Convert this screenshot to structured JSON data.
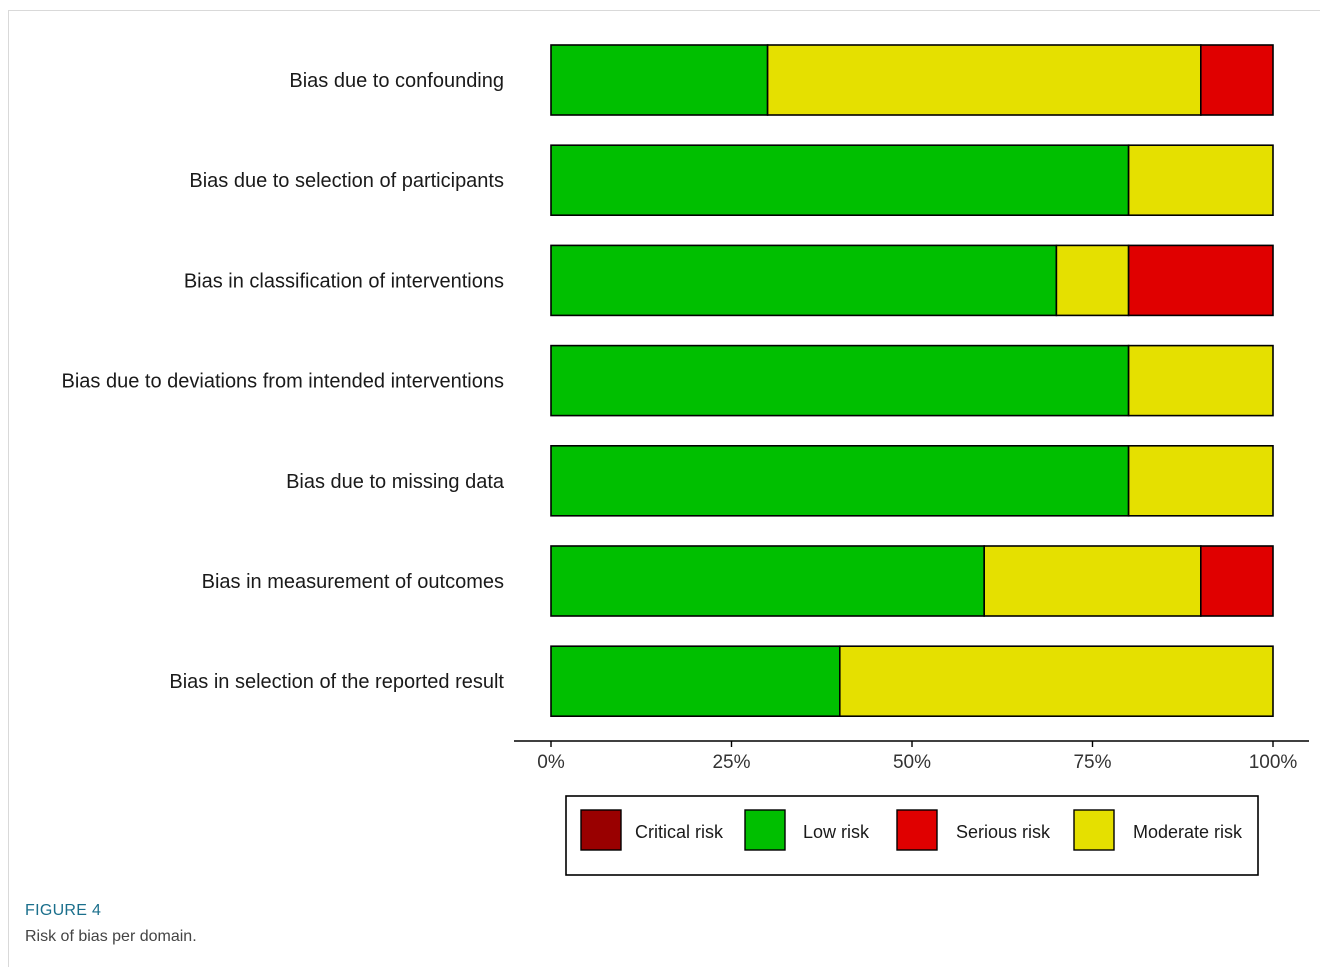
{
  "figure": {
    "label": "FIGURE 4",
    "caption": "Risk of bias per domain."
  },
  "chart_data": {
    "type": "bar",
    "orientation": "horizontal",
    "stacked": true,
    "categories": [
      "Bias due to confounding",
      "Bias due to selection of participants",
      "Bias in classification of interventions",
      "Bias due to deviations from intended interventions",
      "Bias due to missing data",
      "Bias in measurement of outcomes",
      "Bias in selection of the reported result"
    ],
    "series": [
      {
        "name": "Critical risk",
        "color": "#990000",
        "values": [
          0,
          0,
          0,
          0,
          0,
          0,
          0
        ]
      },
      {
        "name": "Low risk",
        "color": "#00bf00",
        "values": [
          30,
          80,
          70,
          80,
          80,
          60,
          40
        ]
      },
      {
        "name": "Moderate risk",
        "color": "#e5e000",
        "values": [
          60,
          20,
          10,
          20,
          20,
          30,
          60
        ]
      },
      {
        "name": "Serious risk",
        "color": "#e00000",
        "values": [
          10,
          0,
          20,
          0,
          0,
          10,
          0
        ]
      }
    ],
    "stack_order": [
      "Low risk",
      "Moderate risk",
      "Serious risk"
    ],
    "legend_order": [
      "Critical risk",
      "Low risk",
      "Serious risk",
      "Moderate risk"
    ],
    "xlim": [
      0,
      100
    ],
    "xticks": [
      "0%",
      "25%",
      "50%",
      "75%",
      "100%"
    ],
    "legend_position": "bottom",
    "grid": false,
    "xlabel": "",
    "ylabel": ""
  }
}
